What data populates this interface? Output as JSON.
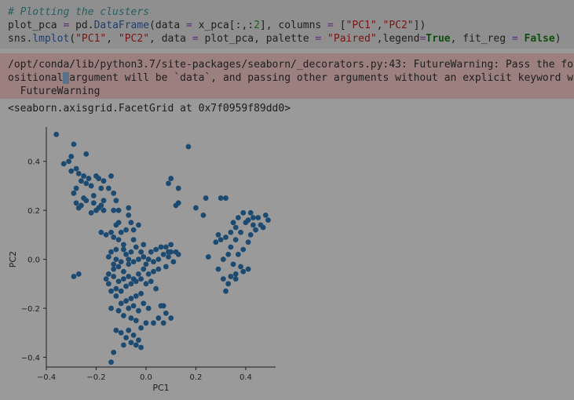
{
  "code_cell": {
    "line1": "# Plotting the clusters",
    "line2": {
      "a": "plot_pca ",
      "eq": "=",
      "b": " pd.",
      "fn": "DataFrame",
      "c": "(data ",
      "eq2": "=",
      "d": " x_pca[:,:",
      "n2": "2",
      "e": "], columns ",
      "eq3": "=",
      "f": " [",
      "s1": "\"PC1\"",
      "g": ",",
      "s2": "\"PC2\"",
      "h": "])"
    },
    "line3": {
      "a": "sns.",
      "fn": "lmplot",
      "b": "(",
      "s1": "\"PC1\"",
      "c": ", ",
      "s2": "\"PC2\"",
      "d": ", data ",
      "eq": "=",
      "e": " plot_pca, palette ",
      "eq2": "=",
      "f": " ",
      "s3": "\"Paired\"",
      "g": ",legend",
      "eq3": "=",
      "kw1": "True",
      "h": ", fit_reg ",
      "eq4": "=",
      "i": " ",
      "kw2": "False",
      "j": ")"
    }
  },
  "stderr": {
    "line1": "/opt/conda/lib/python3.7/site-packages/seaborn/_decorators.py:43: FutureWarning: Pass the fo",
    "line2_pre": "ositional",
    "line2_cursor": " ",
    "line2_post": "argument will be `data`, and passing other arguments without an explicit keyword w",
    "line3": "  FutureWarning"
  },
  "result_text": "<seaborn.axisgrid.FacetGrid at 0x7f0959f89dd0>",
  "colors": {
    "point": "#1c4a70",
    "axis": "#1e1e1e",
    "background": "#9a9a9a"
  },
  "chart_data": {
    "type": "scatter",
    "xlabel": "PC1",
    "ylabel": "PC2",
    "xlim": [
      -0.4,
      0.52
    ],
    "ylim": [
      -0.44,
      0.54
    ],
    "xticks": [
      "−0.4",
      "−0.2",
      "0.0",
      "0.2",
      "0.4"
    ],
    "xtick_values": [
      -0.4,
      -0.2,
      0.0,
      0.2,
      0.4
    ],
    "yticks": [
      "0.4",
      "0.2",
      "0.0",
      "−0.2",
      "−0.4"
    ],
    "ytick_values": [
      0.4,
      0.2,
      0.0,
      -0.2,
      -0.4
    ],
    "grid": false,
    "points": [
      [
        -0.36,
        0.51
      ],
      [
        -0.29,
        0.47
      ],
      [
        -0.24,
        0.43
      ],
      [
        -0.3,
        0.42
      ],
      [
        -0.33,
        0.39
      ],
      [
        -0.31,
        0.4
      ],
      [
        -0.28,
        0.37
      ],
      [
        -0.3,
        0.36
      ],
      [
        -0.27,
        0.35
      ],
      [
        -0.25,
        0.34
      ],
      [
        -0.23,
        0.33
      ],
      [
        -0.26,
        0.32
      ],
      [
        -0.24,
        0.31
      ],
      [
        -0.22,
        0.3
      ],
      [
        -0.28,
        0.29
      ],
      [
        -0.29,
        0.27
      ],
      [
        -0.25,
        0.25
      ],
      [
        -0.21,
        0.26
      ],
      [
        -0.18,
        0.29
      ],
      [
        -0.2,
        0.34
      ],
      [
        -0.19,
        0.33
      ],
      [
        -0.17,
        0.32
      ],
      [
        -0.26,
        0.22
      ],
      [
        -0.21,
        0.23
      ],
      [
        -0.19,
        0.21
      ],
      [
        -0.18,
        0.22
      ],
      [
        -0.17,
        0.24
      ],
      [
        -0.22,
        0.19
      ],
      [
        -0.2,
        0.2
      ],
      [
        -0.24,
        0.24
      ],
      [
        -0.27,
        0.21
      ],
      [
        -0.28,
        0.23
      ],
      [
        -0.15,
        0.29
      ],
      [
        -0.14,
        0.34
      ],
      [
        -0.13,
        0.27
      ],
      [
        -0.12,
        0.24
      ],
      [
        -0.13,
        0.2
      ],
      [
        -0.11,
        0.2
      ],
      [
        -0.07,
        0.21
      ],
      [
        -0.11,
        0.15
      ],
      [
        -0.12,
        0.14
      ],
      [
        -0.18,
        0.11
      ],
      [
        -0.14,
        0.11
      ],
      [
        -0.13,
        0.09
      ],
      [
        -0.11,
        0.08
      ],
      [
        -0.1,
        0.11
      ],
      [
        -0.08,
        0.12
      ],
      [
        -0.06,
        0.15
      ],
      [
        -0.03,
        0.14
      ],
      [
        -0.05,
        0.12
      ],
      [
        -0.09,
        0.06
      ],
      [
        -0.12,
        0.04
      ],
      [
        -0.14,
        0.03
      ],
      [
        -0.15,
        0.01
      ],
      [
        -0.12,
        0.0
      ],
      [
        -0.1,
        -0.01
      ],
      [
        -0.08,
        0.02
      ],
      [
        -0.06,
        0.03
      ],
      [
        -0.04,
        0.05
      ],
      [
        -0.09,
        0.04
      ],
      [
        -0.13,
        -0.02
      ],
      [
        -0.11,
        -0.03
      ],
      [
        -0.09,
        -0.05
      ],
      [
        -0.07,
        -0.02
      ],
      [
        -0.05,
        -0.01
      ],
      [
        -0.03,
        0.0
      ],
      [
        -0.01,
        0.01
      ],
      [
        0.01,
        0.0
      ],
      [
        0.03,
        -0.01
      ],
      [
        0.05,
        0.0
      ],
      [
        0.07,
        0.02
      ],
      [
        0.09,
        0.03
      ],
      [
        0.06,
        0.05
      ],
      [
        0.1,
        0.06
      ],
      [
        0.12,
        0.03
      ],
      [
        0.08,
        -0.03
      ],
      [
        0.05,
        -0.04
      ],
      [
        0.03,
        -0.05
      ],
      [
        0.01,
        -0.06
      ],
      [
        -0.01,
        -0.04
      ],
      [
        -0.03,
        -0.06
      ],
      [
        -0.05,
        -0.08
      ],
      [
        -0.07,
        -0.07
      ],
      [
        -0.09,
        -0.08
      ],
      [
        -0.11,
        -0.09
      ],
      [
        -0.13,
        -0.07
      ],
      [
        -0.15,
        -0.1
      ],
      [
        -0.14,
        -0.13
      ],
      [
        -0.12,
        -0.12
      ],
      [
        -0.1,
        -0.13
      ],
      [
        -0.08,
        -0.11
      ],
      [
        -0.06,
        -0.1
      ],
      [
        -0.04,
        -0.09
      ],
      [
        -0.02,
        -0.08
      ],
      [
        0.0,
        -0.1
      ],
      [
        0.02,
        -0.09
      ],
      [
        0.04,
        -0.12
      ],
      [
        -0.02,
        -0.14
      ],
      [
        -0.04,
        -0.15
      ],
      [
        -0.06,
        -0.16
      ],
      [
        -0.08,
        -0.17
      ],
      [
        -0.1,
        -0.18
      ],
      [
        -0.12,
        -0.15
      ],
      [
        -0.07,
        -0.2
      ],
      [
        -0.05,
        -0.19
      ],
      [
        -0.03,
        -0.21
      ],
      [
        -0.01,
        -0.18
      ],
      [
        0.01,
        -0.2
      ],
      [
        -0.14,
        -0.2
      ],
      [
        -0.11,
        -0.21
      ],
      [
        -0.09,
        -0.23
      ],
      [
        -0.06,
        -0.24
      ],
      [
        -0.04,
        -0.25
      ],
      [
        0.06,
        -0.19
      ],
      [
        0.08,
        -0.22
      ],
      [
        0.07,
        -0.19
      ],
      [
        0.05,
        -0.24
      ],
      [
        0.03,
        -0.26
      ],
      [
        0.1,
        -0.24
      ],
      [
        0.07,
        -0.26
      ],
      [
        0.0,
        -0.26
      ],
      [
        -0.02,
        -0.28
      ],
      [
        -0.07,
        -0.29
      ],
      [
        -0.1,
        -0.3
      ],
      [
        -0.12,
        -0.29
      ],
      [
        -0.08,
        -0.32
      ],
      [
        -0.05,
        -0.31
      ],
      [
        -0.03,
        -0.33
      ],
      [
        -0.06,
        -0.34
      ],
      [
        -0.04,
        -0.35
      ],
      [
        -0.09,
        -0.35
      ],
      [
        -0.13,
        -0.38
      ],
      [
        -0.14,
        -0.42
      ],
      [
        -0.02,
        -0.36
      ],
      [
        -0.15,
        -0.06
      ],
      [
        -0.16,
        -0.08
      ],
      [
        -0.13,
        -0.04
      ],
      [
        -0.05,
        0.08
      ],
      [
        -0.01,
        0.06
      ],
      [
        0.04,
        0.04
      ],
      [
        0.0,
        -0.02
      ],
      [
        -0.02,
        0.03
      ],
      [
        -0.07,
        0.0
      ],
      [
        0.02,
        0.03
      ],
      [
        0.09,
        0.01
      ],
      [
        0.11,
        -0.01
      ],
      [
        0.13,
        0.02
      ],
      [
        0.1,
        0.03
      ],
      [
        0.08,
        0.05
      ],
      [
        -0.17,
        0.2
      ],
      [
        -0.16,
        0.1
      ],
      [
        -0.27,
        -0.06
      ],
      [
        -0.29,
        -0.07
      ],
      [
        0.09,
        0.31
      ],
      [
        0.1,
        0.33
      ],
      [
        0.13,
        0.29
      ],
      [
        0.13,
        0.23
      ],
      [
        0.12,
        0.22
      ],
      [
        0.17,
        0.46
      ],
      [
        0.24,
        0.25
      ],
      [
        0.2,
        0.21
      ],
      [
        0.23,
        0.18
      ],
      [
        0.3,
        0.25
      ],
      [
        0.32,
        0.25
      ],
      [
        0.29,
        0.1
      ],
      [
        0.28,
        0.07
      ],
      [
        0.3,
        0.08
      ],
      [
        0.32,
        0.09
      ],
      [
        0.34,
        0.11
      ],
      [
        0.36,
        0.13
      ],
      [
        0.35,
        0.15
      ],
      [
        0.37,
        0.17
      ],
      [
        0.39,
        0.19
      ],
      [
        0.4,
        0.15
      ],
      [
        0.38,
        0.11
      ],
      [
        0.36,
        0.08
      ],
      [
        0.34,
        0.05
      ],
      [
        0.33,
        0.02
      ],
      [
        0.31,
        0.0
      ],
      [
        0.35,
        -0.02
      ],
      [
        0.37,
        0.02
      ],
      [
        0.39,
        0.04
      ],
      [
        0.41,
        0.07
      ],
      [
        0.42,
        0.1
      ],
      [
        0.44,
        0.12
      ],
      [
        0.46,
        0.14
      ],
      [
        0.45,
        0.17
      ],
      [
        0.42,
        0.19
      ],
      [
        0.48,
        0.18
      ],
      [
        0.49,
        0.16
      ],
      [
        0.47,
        0.13
      ],
      [
        0.43,
        0.14
      ],
      [
        0.41,
        0.16
      ],
      [
        0.43,
        0.17
      ],
      [
        0.38,
        -0.03
      ],
      [
        0.36,
        -0.06
      ],
      [
        0.34,
        -0.07
      ],
      [
        0.31,
        -0.08
      ],
      [
        0.33,
        -0.1
      ],
      [
        0.36,
        -0.08
      ],
      [
        0.39,
        -0.05
      ],
      [
        0.41,
        -0.04
      ],
      [
        0.32,
        -0.13
      ],
      [
        0.29,
        -0.04
      ],
      [
        0.25,
        0.01
      ],
      [
        -0.07,
        0.18
      ]
    ]
  }
}
